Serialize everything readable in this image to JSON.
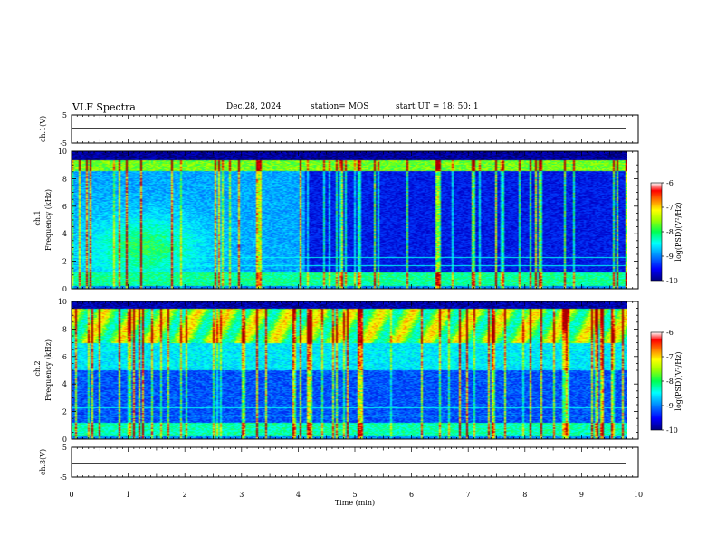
{
  "header": {
    "title": "VLF Spectra",
    "date": "Dec.28, 2024",
    "station": "station= MOS",
    "start_ut": "start  UT  =   18: 50: 1"
  },
  "colors": {
    "spectrogram_scale": [
      "#00008a",
      "#0000ff",
      "#00a0ff",
      "#00ffff",
      "#00ff60",
      "#a0ff00",
      "#ffff00",
      "#ff8000",
      "#ff0000",
      "#c00000"
    ]
  },
  "chart_data": [
    {
      "type": "line",
      "name": "ch1-waveform",
      "ylabel": "ch.1(V)",
      "ylim": [
        -5,
        5
      ],
      "yticks": [
        "5",
        "-5"
      ],
      "x": [
        0,
        10
      ],
      "y": [
        0,
        0
      ]
    },
    {
      "type": "heatmap",
      "name": "ch1-spectrogram",
      "ylabel_top": "ch.1",
      "ylabel": "Frequency (kHz)",
      "ylim": [
        0,
        10
      ],
      "yticks": [
        "0",
        "2",
        "4",
        "6",
        "8",
        "10"
      ],
      "xlim": [
        0,
        10
      ],
      "colorbar": {
        "label": "log(PSD)(V²/Hz)",
        "range": [
          -10,
          -6
        ],
        "ticks": [
          "-6",
          "-7",
          "-8",
          "-9",
          "-10"
        ]
      }
    },
    {
      "type": "heatmap",
      "name": "ch2-spectrogram",
      "ylabel_top": "ch.2",
      "ylabel": "Frequency (kHz)",
      "ylim": [
        0,
        10
      ],
      "yticks": [
        "0",
        "2",
        "4",
        "6",
        "8",
        "10"
      ],
      "xlim": [
        0,
        10
      ],
      "colorbar": {
        "label": "log(PSD)(V²/Hz)",
        "range": [
          -10,
          -6
        ],
        "ticks": [
          "-6",
          "-7",
          "-8",
          "-9",
          "-10"
        ]
      }
    },
    {
      "type": "line",
      "name": "ch3-waveform",
      "ylabel": "ch.3(V)",
      "ylim": [
        -5,
        5
      ],
      "yticks": [
        "5",
        "-5"
      ],
      "x": [
        0,
        10
      ],
      "y": [
        0,
        0
      ]
    }
  ],
  "xaxis": {
    "label": "Time  (min)",
    "ticks": [
      "0",
      "1",
      "2",
      "3",
      "4",
      "5",
      "6",
      "7",
      "8",
      "9",
      "10"
    ],
    "range": [
      0,
      10
    ]
  }
}
